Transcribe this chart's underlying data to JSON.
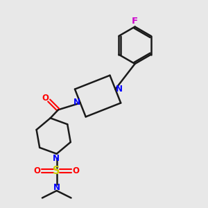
{
  "bg_color": "#e8e8e8",
  "line_color": "#1a1a1a",
  "N_color": "#0000ff",
  "O_color": "#ff0000",
  "S_color": "#cccc00",
  "F_color": "#cc00cc",
  "line_width": 1.8,
  "font_size": 8.5,
  "xlim": [
    0,
    10
  ],
  "ylim": [
    0,
    10
  ]
}
